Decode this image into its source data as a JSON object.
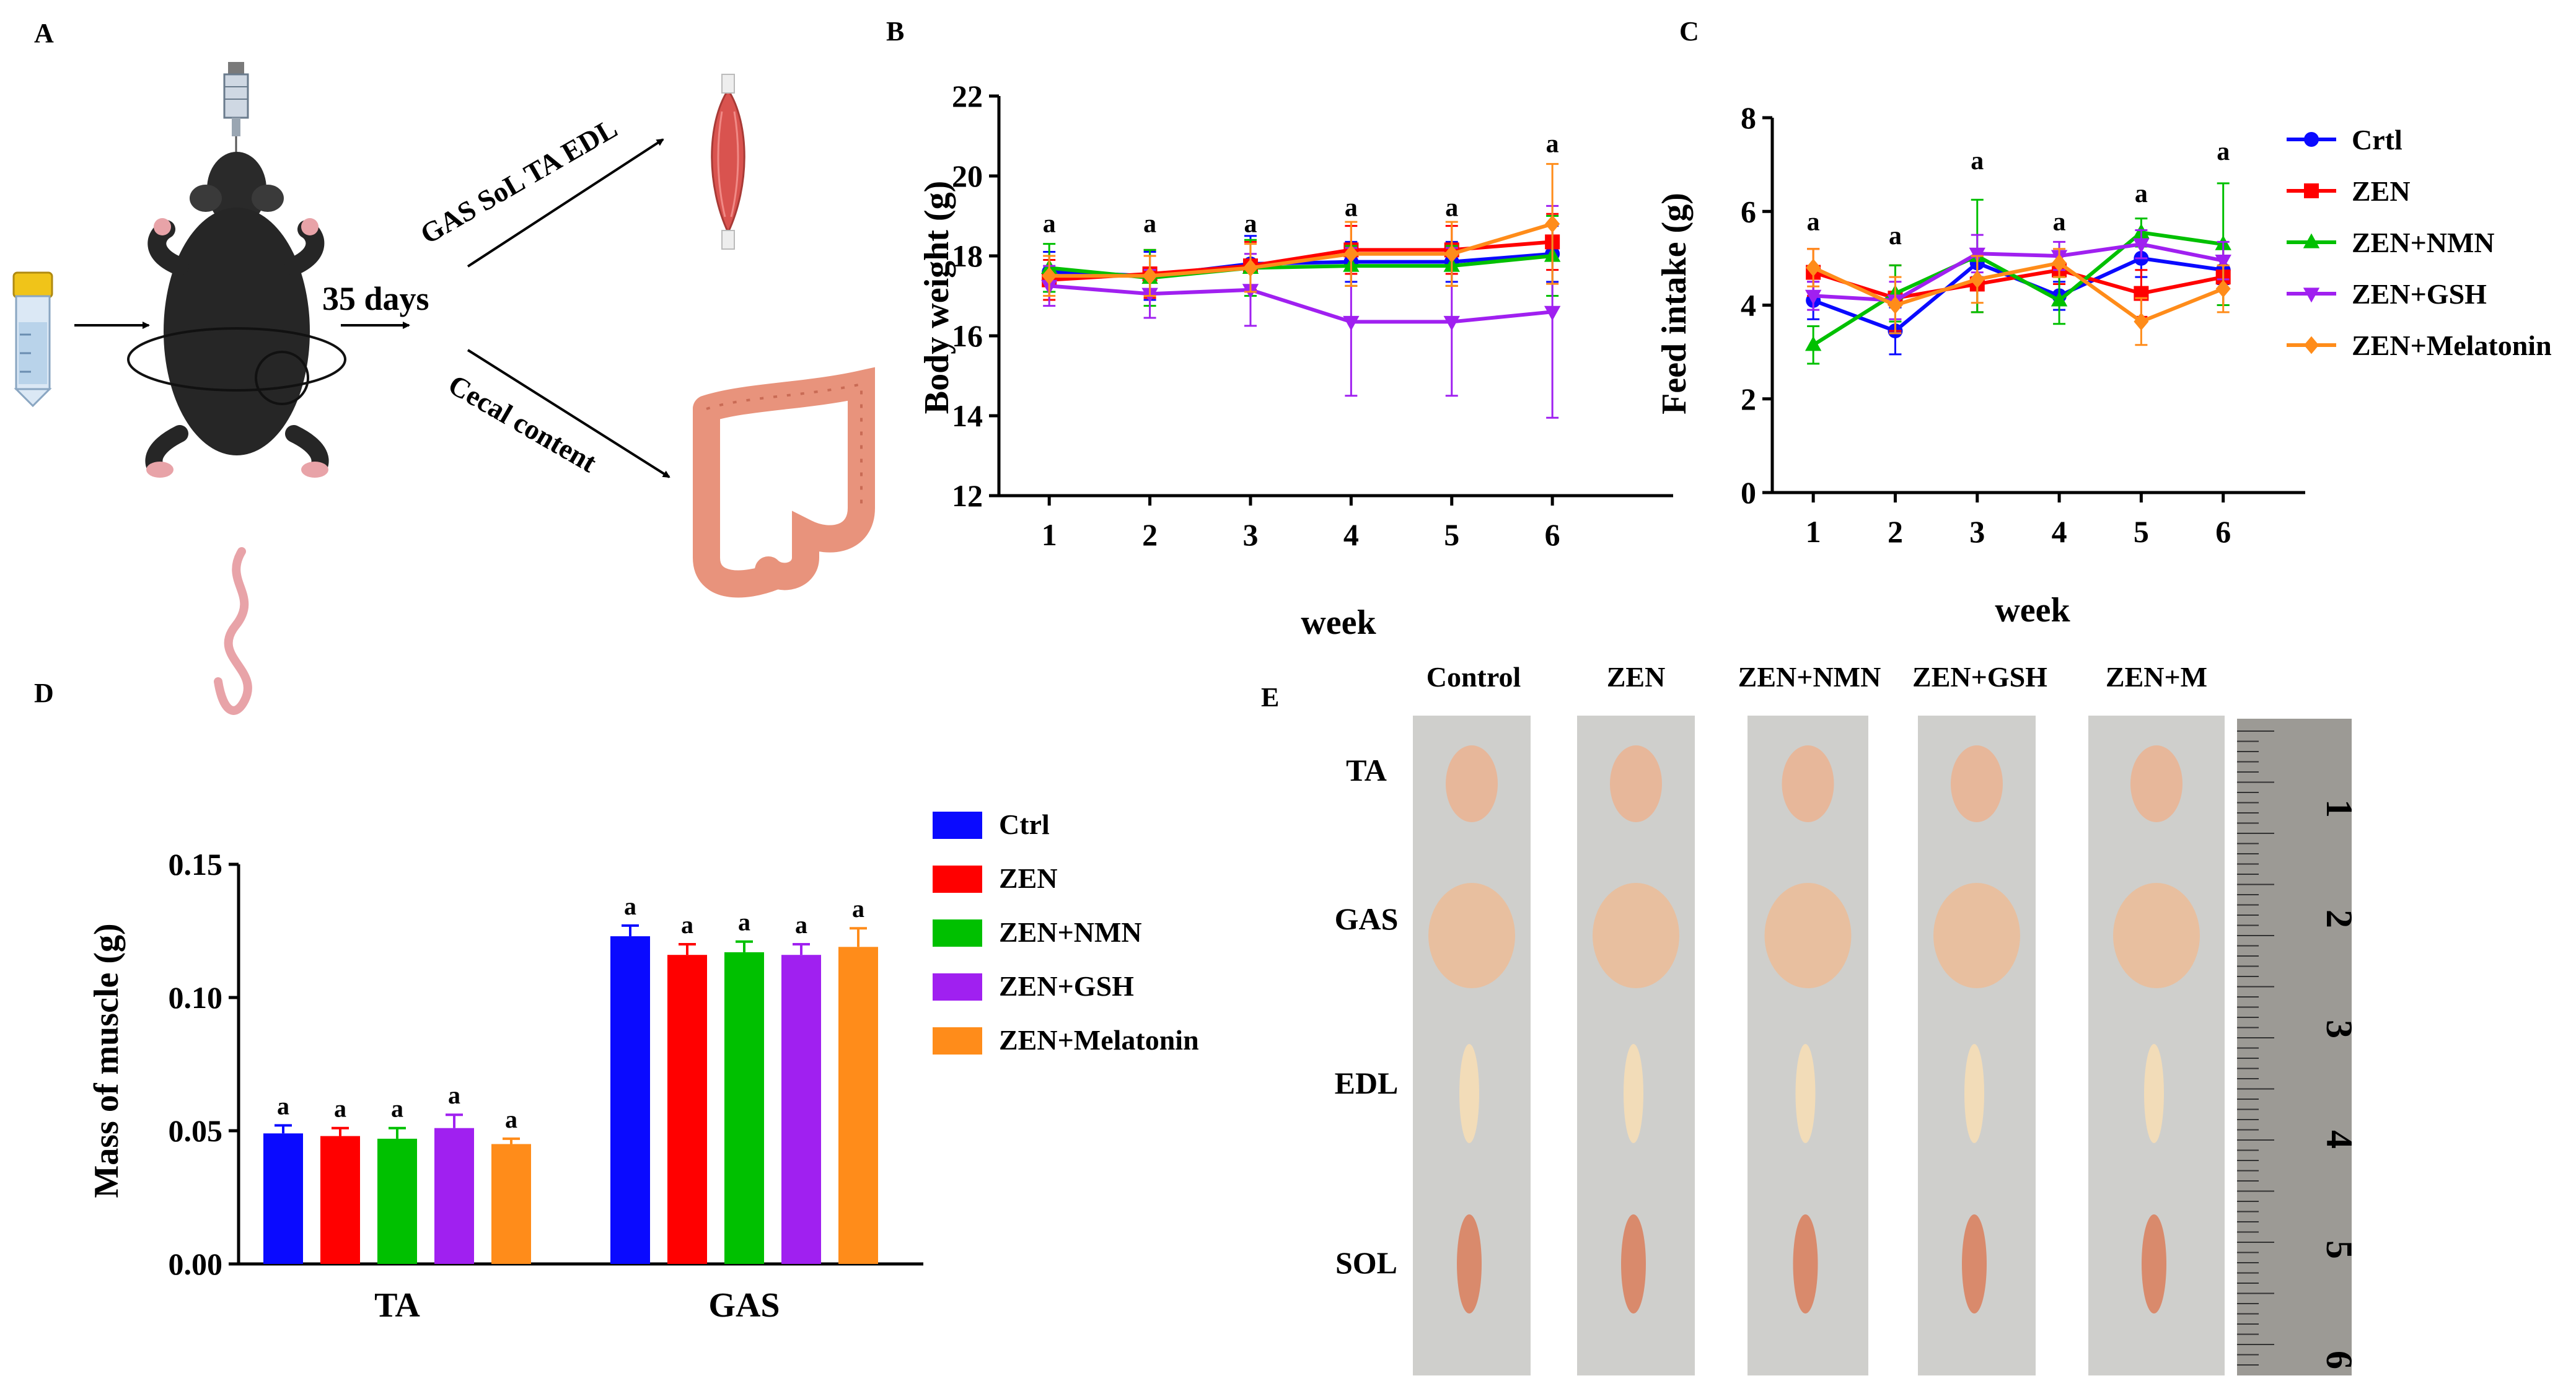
{
  "panel_labels": {
    "A": "A",
    "B": "B",
    "C": "C",
    "D": "D",
    "E": "E"
  },
  "schematic": {
    "duration_label": "35 days",
    "muscle_arrow_label": "GAS SoL TA EDL",
    "cecal_arrow_label": "Cecal content"
  },
  "photo": {
    "columns": [
      "Control",
      "ZEN",
      "ZEN+NMN",
      "ZEN+GSH",
      "ZEN+M"
    ],
    "rows": [
      "TA",
      "GAS",
      "EDL",
      "SOL"
    ],
    "ruler_marks": [
      "1",
      "2",
      "3",
      "4",
      "5",
      "6"
    ]
  },
  "colors": {
    "ctrl": "#0a0aff",
    "zen": "#ff0000",
    "nmn": "#00c000",
    "gsh": "#a020f0",
    "mel": "#ff8c1a"
  },
  "chart_data": [
    {
      "id": "B",
      "type": "line",
      "title": "",
      "xlabel": "week",
      "ylabel": "Body weight (g)",
      "x": [
        1,
        2,
        3,
        4,
        5,
        6
      ],
      "xlim": [
        0.5,
        7.2
      ],
      "ylim": [
        12,
        22
      ],
      "yticks": [
        12,
        14,
        16,
        18,
        20,
        22
      ],
      "significance": [
        "a",
        "a",
        "a",
        "a",
        "a",
        "a"
      ],
      "sig_y": [
        18.6,
        18.6,
        18.6,
        19.0,
        19.0,
        20.6
      ],
      "series": [
        {
          "name": "Crtl",
          "color": "#0a0aff",
          "marker": "circle",
          "values": [
            17.6,
            17.5,
            17.8,
            17.85,
            17.85,
            18.05
          ],
          "errors": [
            0.5,
            0.6,
            0.7,
            0.5,
            0.5,
            0.7
          ]
        },
        {
          "name": "ZEN",
          "color": "#ff0000",
          "marker": "square",
          "values": [
            17.4,
            17.55,
            17.75,
            18.15,
            18.15,
            18.35
          ],
          "errors": [
            0.5,
            0.6,
            0.6,
            0.6,
            0.6,
            0.7
          ]
        },
        {
          "name": "ZEN+NMN",
          "color": "#00c000",
          "marker": "triangle",
          "values": [
            17.7,
            17.45,
            17.7,
            17.75,
            17.75,
            18.0
          ],
          "errors": [
            0.6,
            0.7,
            0.7,
            0.5,
            0.5,
            1.0
          ]
        },
        {
          "name": "ZEN+GSH",
          "color": "#a020f0",
          "marker": "triangle-down",
          "values": [
            17.25,
            17.05,
            17.15,
            16.35,
            16.35,
            16.6
          ],
          "errors": [
            0.5,
            0.6,
            0.9,
            1.85,
            1.85,
            2.65
          ]
        },
        {
          "name": "ZEN+Melatonin",
          "color": "#ff8c1a",
          "marker": "diamond",
          "values": [
            17.5,
            17.5,
            17.7,
            18.05,
            18.05,
            18.8
          ],
          "errors": [
            0.5,
            0.5,
            0.6,
            0.8,
            0.8,
            1.5
          ]
        }
      ]
    },
    {
      "id": "C",
      "type": "line",
      "title": "",
      "xlabel": "week",
      "ylabel": "Feed intake (g)",
      "x": [
        1,
        2,
        3,
        4,
        5,
        6
      ],
      "xlim": [
        0.5,
        7.0
      ],
      "ylim": [
        0,
        8
      ],
      "yticks": [
        0,
        2,
        4,
        6,
        8
      ],
      "significance": [
        "a",
        "a",
        "a",
        "a",
        "a",
        "a"
      ],
      "sig_y": [
        5.6,
        5.3,
        6.9,
        5.6,
        6.2,
        7.1
      ],
      "legend": [
        "Crtl",
        "ZEN",
        "ZEN+NMN",
        "ZEN+GSH",
        "ZEN+Melatonin"
      ],
      "series": [
        {
          "name": "Crtl",
          "color": "#0a0aff",
          "marker": "circle",
          "values": [
            4.1,
            3.45,
            4.9,
            4.2,
            5.0,
            4.75
          ],
          "errors": [
            0.4,
            0.5,
            0.3,
            0.3,
            0.4,
            0.3
          ]
        },
        {
          "name": "ZEN",
          "color": "#ff0000",
          "marker": "square",
          "values": [
            4.7,
            4.15,
            4.45,
            4.75,
            4.25,
            4.6
          ],
          "errors": [
            0.5,
            0.7,
            0.6,
            0.3,
            0.5,
            0.6
          ]
        },
        {
          "name": "ZEN+NMN",
          "color": "#00c000",
          "marker": "triangle",
          "values": [
            3.15,
            4.25,
            5.05,
            4.1,
            5.55,
            5.3
          ],
          "errors": [
            0.4,
            0.6,
            1.2,
            0.5,
            0.3,
            1.3
          ]
        },
        {
          "name": "ZEN+GSH",
          "color": "#a020f0",
          "marker": "triangle-down",
          "values": [
            4.2,
            4.1,
            5.1,
            5.05,
            5.3,
            4.95
          ],
          "errors": [
            0.3,
            0.4,
            0.4,
            0.3,
            0.3,
            0.4
          ]
        },
        {
          "name": "ZEN+Melatonin",
          "color": "#ff8c1a",
          "marker": "diamond",
          "values": [
            4.8,
            4.0,
            4.55,
            4.9,
            3.65,
            4.35
          ],
          "errors": [
            0.4,
            0.6,
            0.5,
            0.3,
            0.5,
            0.5
          ]
        }
      ]
    },
    {
      "id": "D",
      "type": "bar",
      "title": "",
      "xlabel": "",
      "ylabel": "Mass of muscle (g)",
      "categories": [
        "TA",
        "GAS"
      ],
      "ylim": [
        0,
        0.15
      ],
      "yticks": [
        0.0,
        0.05,
        0.1,
        0.15
      ],
      "ytick_labels": [
        "0.00",
        "0.05",
        "0.10",
        "0.15"
      ],
      "significance": [
        [
          "a",
          "a",
          "a",
          "a",
          "a"
        ],
        [
          "a",
          "a",
          "a",
          "a",
          "a"
        ]
      ],
      "legend": [
        "Ctrl",
        "ZEN",
        "ZEN+NMN",
        "ZEN+GSH",
        "ZEN+Melatonin"
      ],
      "series": [
        {
          "name": "Ctrl",
          "color": "#0a0aff",
          "values": [
            0.049,
            0.123
          ],
          "errors": [
            0.003,
            0.004
          ]
        },
        {
          "name": "ZEN",
          "color": "#ff0000",
          "values": [
            0.048,
            0.116
          ],
          "errors": [
            0.003,
            0.004
          ]
        },
        {
          "name": "ZEN+NMN",
          "color": "#00c000",
          "values": [
            0.047,
            0.117
          ],
          "errors": [
            0.004,
            0.004
          ]
        },
        {
          "name": "ZEN+GSH",
          "color": "#a020f0",
          "values": [
            0.051,
            0.116
          ],
          "errors": [
            0.005,
            0.004
          ]
        },
        {
          "name": "ZEN+Melatonin",
          "color": "#ff8c1a",
          "values": [
            0.045,
            0.119
          ],
          "errors": [
            0.002,
            0.007
          ]
        }
      ]
    }
  ]
}
